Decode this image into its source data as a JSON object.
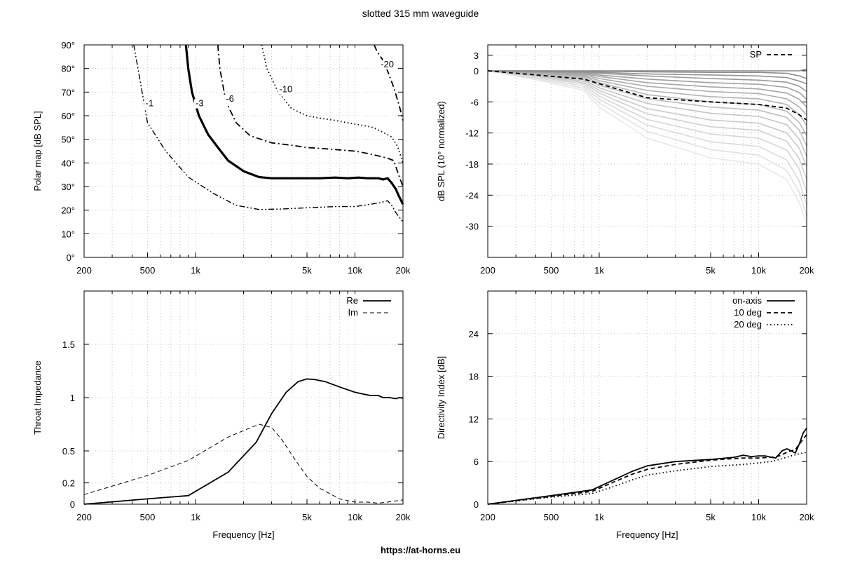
{
  "title": "slotted 315 mm waveguide",
  "footer": "https://at-horns.eu",
  "chart_data": [
    {
      "id": "polar",
      "type": "line",
      "ylabel": "Polar map [dB SPL]",
      "xlim": [
        200,
        20000
      ],
      "xscale": "log",
      "ylim": [
        0,
        90
      ],
      "xticks": [
        200,
        500,
        1000,
        5000,
        10000,
        20000
      ],
      "xticklabels": [
        "200",
        "500",
        "1k",
        "5k",
        "10k",
        "20k"
      ],
      "yticks": [
        0,
        10,
        20,
        30,
        40,
        50,
        60,
        70,
        80,
        90
      ],
      "yticklabels": [
        "0°",
        "10°",
        "20°",
        "30°",
        "40°",
        "50°",
        "60°",
        "70°",
        "80°",
        "90°"
      ],
      "grid": true,
      "series": [
        {
          "name": "-1",
          "label_at": [
            485,
            64
          ],
          "style": "dashdotdot",
          "width": 1.4,
          "x": [
            410,
            500,
            650,
            900,
            1300,
            1800,
            2500,
            3500,
            5000,
            7500,
            10000,
            14000,
            16000,
            17000,
            18000,
            19000,
            20000
          ],
          "y": [
            90,
            57,
            45,
            34,
            27,
            22,
            20.3,
            20.5,
            21,
            21.5,
            21.5,
            23,
            24,
            22,
            19,
            17,
            15
          ]
        },
        {
          "name": "-3",
          "label_at": [
            1000,
            64
          ],
          "style": "solid",
          "width": 3.2,
          "x": [
            870,
            900,
            950,
            1050,
            1200,
            1400,
            1600,
            2000,
            2500,
            3000,
            4000,
            5000,
            6000,
            7500,
            9000,
            10500,
            12000,
            14000,
            15000,
            16000,
            17000,
            18000,
            19000,
            20000
          ],
          "y": [
            90,
            80,
            70,
            60,
            52,
            46,
            41,
            36.5,
            34,
            33.5,
            33.5,
            33.5,
            33.5,
            33.8,
            33.5,
            33.8,
            33.5,
            33.5,
            33,
            33.5,
            31.5,
            29,
            25.5,
            22.5
          ]
        },
        {
          "name": "-6",
          "label_at": [
            1550,
            66
          ],
          "style": "dashdot",
          "width": 1.8,
          "x": [
            1380,
            1420,
            1550,
            1800,
            2200,
            3000,
            4000,
            5000,
            6500,
            8000,
            10000,
            12000,
            14000,
            16000,
            17500,
            19000,
            20000
          ],
          "y": [
            90,
            80,
            66,
            57,
            51.5,
            48.5,
            47.5,
            46.5,
            46,
            45.5,
            45,
            44,
            43,
            42,
            41,
            34,
            30
          ]
        },
        {
          "name": "-10",
          "label_at": [
            3350,
            70
          ],
          "style": "dotted",
          "width": 1.8,
          "x": [
            2600,
            2800,
            3300,
            4000,
            5000,
            6000,
            7500,
            9000,
            11000,
            13000,
            15000,
            17000,
            18500,
            20000
          ],
          "y": [
            90,
            80,
            70,
            63,
            60,
            59,
            58,
            57,
            56,
            55,
            53,
            51,
            47,
            40
          ]
        },
        {
          "name": "-20",
          "label_at": [
            14500,
            80.5
          ],
          "style": "dashdot",
          "width": 1.8,
          "x": [
            13200,
            13800,
            14800,
            16000,
            17500,
            19000,
            20000
          ],
          "y": [
            90,
            87,
            84,
            79,
            72,
            64,
            58
          ]
        }
      ]
    },
    {
      "id": "spl",
      "type": "line",
      "ylabel": "dB SPL (10° normalized)",
      "xlim": [
        200,
        20000
      ],
      "xscale": "log",
      "ylim": [
        -36,
        5
      ],
      "xticks": [
        200,
        500,
        1000,
        5000,
        10000,
        20000
      ],
      "xticklabels": [
        "200",
        "500",
        "1k",
        "5k",
        "10k",
        "20k"
      ],
      "yticks": [
        3,
        0,
        -6,
        -12,
        -18,
        -24,
        -30
      ],
      "yticklabels": [
        "3",
        "0",
        "-6",
        "-12",
        "-18",
        "-24",
        "-30"
      ],
      "grid": true,
      "legend_position": "top-right",
      "legend": [
        "SP"
      ],
      "freq": [
        200,
        400,
        800,
        1000,
        2000,
        5000,
        10000,
        15000,
        18000,
        20000
      ],
      "series": [
        {
          "name": "SP",
          "style": "dashed",
          "color": "#000000",
          "y": [
            0,
            -0.8,
            -1.6,
            -2.5,
            -5.2,
            -6,
            -6.5,
            -7.2,
            -8.5,
            -9.5
          ]
        },
        {
          "color": "#888888",
          "y": [
            0,
            0,
            0,
            0,
            0,
            0,
            0,
            0,
            0,
            0.3
          ]
        },
        {
          "color": "#8e8e8e",
          "y": [
            0,
            0,
            -0.1,
            -0.1,
            -0.2,
            -0.3,
            -0.3,
            -0.5,
            -1.0,
            -1.5
          ]
        },
        {
          "color": "#949494",
          "y": [
            0,
            -0.1,
            -0.2,
            -0.3,
            -0.6,
            -0.8,
            -1.0,
            -1.3,
            -2.0,
            -2.5
          ]
        },
        {
          "color": "#9a9a9a",
          "y": [
            0,
            -0.1,
            -0.3,
            -0.5,
            -1.0,
            -1.5,
            -1.8,
            -2.2,
            -3.0,
            -4.0
          ]
        },
        {
          "color": "#a0a0a0",
          "y": [
            0,
            -0.2,
            -0.4,
            -0.8,
            -1.6,
            -2.3,
            -2.6,
            -3.2,
            -4.2,
            -5.5
          ]
        },
        {
          "color": "#a6a6a6",
          "y": [
            0,
            -0.3,
            -0.6,
            -1.1,
            -2.3,
            -3.1,
            -3.5,
            -4.3,
            -5.5,
            -7.0
          ]
        },
        {
          "color": "#acacac",
          "y": [
            0,
            -0.4,
            -0.8,
            -1.5,
            -3.0,
            -4.0,
            -4.4,
            -5.4,
            -7.0,
            -8.5
          ]
        },
        {
          "color": "#b2b2b2",
          "y": [
            0,
            -0.5,
            -1.0,
            -1.9,
            -3.8,
            -5.0,
            -5.4,
            -6.5,
            -8.5,
            -10.5
          ]
        },
        {
          "color": "#b8b8b8",
          "y": [
            0,
            -0.6,
            -1.2,
            -2.3,
            -4.6,
            -6.0,
            -6.5,
            -7.8,
            -10.0,
            -12.5
          ]
        },
        {
          "color": "#bebebe",
          "y": [
            0,
            -0.7,
            -1.4,
            -2.8,
            -5.4,
            -7.0,
            -7.6,
            -9.0,
            -11.5,
            -14.5
          ]
        },
        {
          "color": "#c4c4c4",
          "y": [
            0,
            -0.8,
            -1.7,
            -3.3,
            -6.3,
            -8.2,
            -8.8,
            -10.4,
            -13.2,
            -16.5
          ]
        },
        {
          "color": "#cacaca",
          "y": [
            0,
            -0.9,
            -2.0,
            -3.8,
            -7.3,
            -9.5,
            -10.1,
            -12.0,
            -15.0,
            -18.5
          ]
        },
        {
          "color": "#d0d0d0",
          "y": [
            0,
            -1.0,
            -2.3,
            -4.3,
            -8.3,
            -10.8,
            -11.5,
            -13.6,
            -17.0,
            -21.0
          ]
        },
        {
          "color": "#d6d6d6",
          "y": [
            0,
            -1.1,
            -2.6,
            -4.9,
            -9.4,
            -12.2,
            -13.0,
            -15.3,
            -19.0,
            -23.5
          ]
        },
        {
          "color": "#dcdcdc",
          "y": [
            0,
            -1.3,
            -3.0,
            -5.5,
            -10.5,
            -13.7,
            -14.6,
            -17.2,
            -21.3,
            -26.0
          ]
        },
        {
          "color": "#e2e2e2",
          "y": [
            0,
            -1.5,
            -3.4,
            -6.2,
            -11.7,
            -15.2,
            -16.3,
            -19.2,
            -23.5,
            -28.0
          ]
        },
        {
          "color": "#e8e8e8",
          "y": [
            0,
            -1.7,
            -3.8,
            -7.0,
            -13.0,
            -16.8,
            -18.0,
            -21.0,
            -25.5,
            -29.5
          ]
        }
      ]
    },
    {
      "id": "impedance",
      "type": "line",
      "xlabel": "Frequency [Hz]",
      "ylabel": "Throat Impedance",
      "xlim": [
        200,
        20000
      ],
      "xscale": "log",
      "ylim": [
        0,
        2
      ],
      "xticks": [
        200,
        500,
        1000,
        5000,
        10000,
        20000
      ],
      "xticklabels": [
        "200",
        "500",
        "1k",
        "5k",
        "10k",
        "20k"
      ],
      "yticks": [
        0,
        0.2,
        0.5,
        1,
        1.5
      ],
      "yticklabels": [
        "0",
        "0.2",
        "0.5",
        "1",
        "1.5"
      ],
      "grid": true,
      "legend_position": "top-right",
      "legend": [
        "Re",
        "Im"
      ],
      "series": [
        {
          "name": "Re",
          "style": "solid",
          "width": 1.8,
          "x": [
            200,
            500,
            900,
            1600,
            2400,
            3000,
            3700,
            4400,
            5000,
            5600,
            6500,
            8000,
            10000,
            11500,
            12500,
            14000,
            15000,
            16500,
            18000,
            19000,
            20000
          ],
          "y": [
            0,
            0.05,
            0.08,
            0.3,
            0.58,
            0.85,
            1.05,
            1.15,
            1.175,
            1.17,
            1.15,
            1.1,
            1.05,
            1.03,
            1.02,
            1.02,
            1.0,
            1.0,
            0.99,
            1.0,
            0.995
          ]
        },
        {
          "name": "Im",
          "style": "dashed",
          "width": 1,
          "x": [
            200,
            500,
            900,
            1600,
            2500,
            3000,
            3500,
            4200,
            5000,
            6000,
            8000,
            10000,
            12000,
            14000,
            16000,
            20000
          ],
          "y": [
            0.09,
            0.27,
            0.41,
            0.63,
            0.75,
            0.72,
            0.6,
            0.42,
            0.26,
            0.15,
            0.05,
            0.02,
            0.02,
            0.01,
            0.02,
            0.04
          ]
        }
      ]
    },
    {
      "id": "di",
      "type": "line",
      "xlabel": "Frequency [Hz]",
      "ylabel": "Directivity Index [dB]",
      "xlim": [
        200,
        20000
      ],
      "xscale": "log",
      "ylim": [
        0,
        30
      ],
      "xticks": [
        200,
        500,
        1000,
        5000,
        10000,
        20000
      ],
      "xticklabels": [
        "200",
        "500",
        "1k",
        "5k",
        "10k",
        "20k"
      ],
      "yticks": [
        0,
        6,
        12,
        18,
        24
      ],
      "yticklabels": [
        "0",
        "6",
        "12",
        "18",
        "24"
      ],
      "grid": true,
      "legend_position": "top-right",
      "legend": [
        "on-axis",
        "10 deg",
        "20 deg"
      ],
      "series": [
        {
          "name": "on-axis",
          "style": "solid",
          "width": 1.8,
          "x": [
            200,
            500,
            900,
            1200,
            1600,
            2000,
            3000,
            5000,
            7000,
            8000,
            9000,
            10000,
            11000,
            12000,
            12800,
            14000,
            15000,
            16000,
            17000,
            18000,
            19000,
            20000
          ],
          "y": [
            0,
            1.2,
            2,
            3.3,
            4.6,
            5.4,
            6.0,
            6.3,
            6.6,
            6.9,
            6.7,
            6.8,
            6.8,
            6.6,
            6.5,
            7.5,
            7.8,
            7.5,
            7.2,
            8.5,
            10,
            10.7
          ]
        },
        {
          "name": "10 deg",
          "style": "dashed",
          "width": 1.8,
          "x": [
            200,
            500,
            900,
            1200,
            1600,
            2000,
            3000,
            5000,
            8000,
            10000,
            12000,
            13500,
            15000,
            17000,
            18500,
            20000
          ],
          "y": [
            0,
            1.1,
            1.8,
            3.0,
            4.2,
            4.9,
            5.6,
            6.2,
            6.5,
            6.5,
            6.6,
            6.8,
            7.3,
            7.7,
            8.8,
            9.8
          ]
        },
        {
          "name": "20 deg",
          "style": "dotted",
          "width": 1.8,
          "x": [
            200,
            500,
            900,
            1200,
            1600,
            2000,
            3000,
            5000,
            8000,
            10000,
            12000,
            14000,
            16000,
            18000,
            20000
          ],
          "y": [
            0,
            1.0,
            1.5,
            2.4,
            3.4,
            4.1,
            4.7,
            5.3,
            5.6,
            5.8,
            6.0,
            6.4,
            6.8,
            7.1,
            7.3
          ]
        }
      ]
    }
  ]
}
